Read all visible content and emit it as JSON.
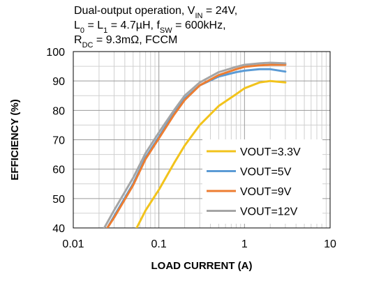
{
  "chart_data": {
    "type": "line",
    "title_lines": [
      [
        {
          "t": "Dual-output operation, V"
        },
        {
          "t": "IN",
          "sub": true
        },
        {
          "t": " = 24V,"
        }
      ],
      [
        {
          "t": "L"
        },
        {
          "t": "0",
          "sub": true
        },
        {
          "t": " = L"
        },
        {
          "t": "1",
          "sub": true
        },
        {
          "t": " = 4.7µH, f"
        },
        {
          "t": "SW",
          "sub": true
        },
        {
          "t": " = 600kHz,"
        }
      ],
      [
        {
          "t": "R"
        },
        {
          "t": "DC",
          "sub": true
        },
        {
          "t": " = 9.3mΩ, FCCM"
        }
      ]
    ],
    "xlabel": "LOAD CURRENT (A)",
    "ylabel": "EFFICIENCY (%)",
    "xscale": "log",
    "xlim": [
      0.01,
      10
    ],
    "ylim": [
      40,
      100
    ],
    "xticks": [
      0.01,
      0.1,
      1,
      10
    ],
    "xtick_labels": [
      "0.01",
      "0.1",
      "1",
      "10"
    ],
    "yticks": [
      40,
      50,
      60,
      70,
      80,
      90,
      100
    ],
    "ytick_labels": [
      "40",
      "50",
      "60",
      "70",
      "80",
      "90",
      "100"
    ],
    "grid": true,
    "legend_position": "bottom-right",
    "series": [
      {
        "name": "VOUT=3.3V",
        "color": "#f2c31c",
        "x": [
          0.055,
          0.07,
          0.1,
          0.15,
          0.2,
          0.3,
          0.5,
          0.8,
          1,
          1.5,
          2,
          3
        ],
        "y": [
          40,
          46,
          53,
          62,
          68,
          75,
          81.5,
          85.5,
          87.5,
          89.5,
          90,
          89.5
        ]
      },
      {
        "name": "VOUT=5V",
        "color": "#5b9bd5",
        "x": [
          0.025,
          0.03,
          0.05,
          0.07,
          0.1,
          0.15,
          0.2,
          0.3,
          0.5,
          0.8,
          1,
          1.5,
          2,
          3
        ],
        "y": [
          40,
          44,
          55,
          64,
          71,
          79,
          84,
          88.5,
          91.5,
          93,
          93.5,
          94,
          94,
          93.2
        ]
      },
      {
        "name": "VOUT=9V",
        "color": "#ed7d31",
        "x": [
          0.025,
          0.03,
          0.05,
          0.07,
          0.1,
          0.15,
          0.2,
          0.3,
          0.5,
          0.8,
          1,
          1.5,
          2,
          3
        ],
        "y": [
          40,
          43.5,
          54.5,
          63.5,
          70.5,
          78.5,
          83.5,
          88.5,
          92,
          94,
          94.8,
          95.3,
          95.5,
          95.5
        ]
      },
      {
        "name": "VOUT=12V",
        "color": "#a5a5a5",
        "x": [
          0.023,
          0.03,
          0.05,
          0.07,
          0.1,
          0.15,
          0.2,
          0.3,
          0.5,
          0.8,
          1,
          1.5,
          2,
          3
        ],
        "y": [
          40,
          46,
          57,
          65.5,
          72.5,
          80,
          85,
          89.5,
          93,
          94.8,
          95.5,
          96,
          96.2,
          96
        ]
      }
    ]
  }
}
